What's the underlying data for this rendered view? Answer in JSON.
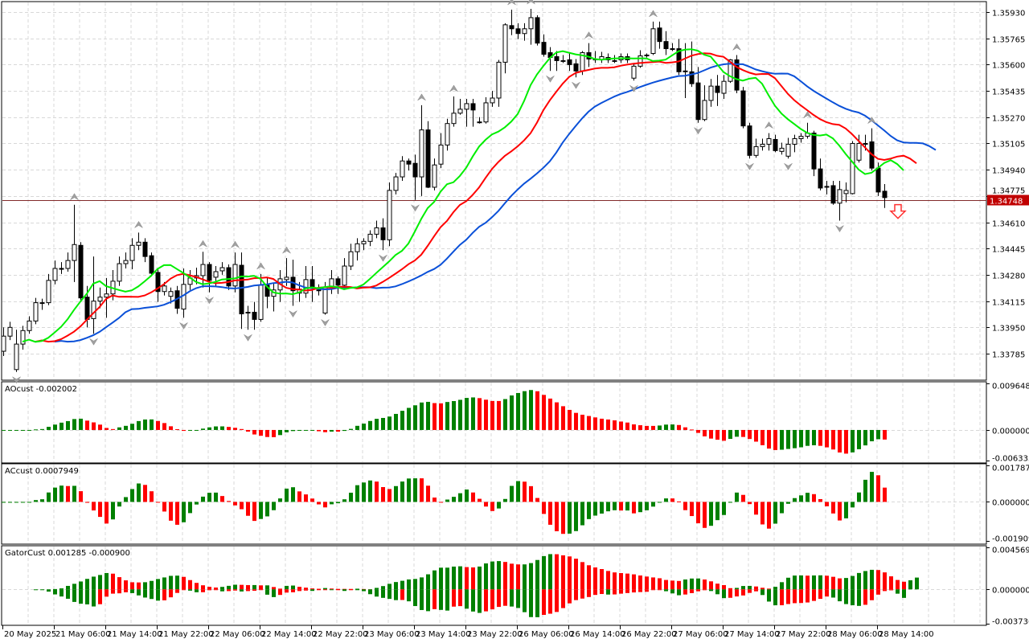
{
  "colors": {
    "bull_body": "#ffffff",
    "bear_body": "#000000",
    "wick": "#000000",
    "hist_up": "#008000",
    "hist_down": "#ff0000",
    "jaw": "#0a50d8",
    "teeth": "#ff0000",
    "lips": "#00ee00",
    "grid": "#d8d8d8",
    "bid_line": "#b00000",
    "price_badge": "#c00000",
    "fractal": "#a0a0a0",
    "signal_arrow": "#ff3030"
  },
  "chart_data": {
    "type": "candlestick",
    "timeframe_bars_per_label": 8,
    "x_tick_labels": [
      "20 May 2025",
      "21 May 06:00",
      "21 May 14:00",
      "21 May 22:00",
      "22 May 06:00",
      "22 May 14:00",
      "22 May 22:00",
      "23 May 06:00",
      "23 May 14:00",
      "23 May 22:00",
      "26 May 06:00",
      "26 May 14:00",
      "26 May 22:00",
      "27 May 06:00",
      "27 May 14:00",
      "27 May 22:00",
      "28 May 06:00",
      "28 May 14:00"
    ],
    "price_axis": {
      "ticks": [
        "1.35930",
        "1.35765",
        "1.35600",
        "1.35435",
        "1.35270",
        "1.35105",
        "1.34940",
        "1.34775",
        "1.34610",
        "1.34445",
        "1.34280",
        "1.34115",
        "1.33950",
        "1.33785"
      ],
      "current_price": "1.34748",
      "current_price_value": 1.34748
    },
    "signal": {
      "type": "sell-arrow",
      "bars_after_last": 2,
      "price": 1.3468
    },
    "alligator": {
      "jaw": {
        "period": 13,
        "shift": 8
      },
      "teeth": {
        "period": 8,
        "shift": 5
      },
      "lips": {
        "period": 5,
        "shift": 3
      }
    },
    "candles_ohlc": [
      [
        1.338,
        1.3395,
        1.3377,
        1.33895
      ],
      [
        1.33895,
        1.33985,
        1.3387,
        1.3395
      ],
      [
        1.33685,
        1.33935,
        1.3367,
        1.33845
      ],
      [
        1.33845,
        1.3396,
        1.3381,
        1.3393
      ],
      [
        1.3393,
        1.3402,
        1.3391,
        1.3399
      ],
      [
        1.3399,
        1.34135,
        1.3397,
        1.34105
      ],
      [
        1.34105,
        1.3413,
        1.3406,
        1.34105
      ],
      [
        1.34105,
        1.34285,
        1.3409,
        1.34245
      ],
      [
        1.34245,
        1.3437,
        1.3422,
        1.3432
      ],
      [
        1.3432,
        1.3436,
        1.34285,
        1.3432
      ],
      [
        1.3432,
        1.3442,
        1.343,
        1.3437
      ],
      [
        1.3437,
        1.3472,
        1.34235,
        1.3447
      ],
      [
        1.34465,
        1.34485,
        1.3412,
        1.34135
      ],
      [
        1.3414,
        1.3421,
        1.3395,
        1.34
      ],
      [
        1.34005,
        1.34395,
        1.3391,
        1.34115
      ],
      [
        1.34115,
        1.342,
        1.3407,
        1.3414
      ],
      [
        1.3414,
        1.3426,
        1.3401,
        1.3416
      ],
      [
        1.3416,
        1.3431,
        1.3412,
        1.3424
      ],
      [
        1.3424,
        1.34395,
        1.3421,
        1.3435
      ],
      [
        1.3435,
        1.3442,
        1.3432,
        1.3437
      ],
      [
        1.3437,
        1.3451,
        1.34315,
        1.34465
      ],
      [
        1.34465,
        1.34545,
        1.34435,
        1.34485
      ],
      [
        1.34485,
        1.3451,
        1.3436,
        1.34395
      ],
      [
        1.344,
        1.3442,
        1.3427,
        1.3429
      ],
      [
        1.34295,
        1.3432,
        1.3411,
        1.34175
      ],
      [
        1.34175,
        1.34235,
        1.3415,
        1.3421
      ],
      [
        1.34145,
        1.342,
        1.341,
        1.34175
      ],
      [
        1.3418,
        1.3421,
        1.34035,
        1.3407
      ],
      [
        1.34065,
        1.3432,
        1.3401,
        1.3422
      ],
      [
        1.3422,
        1.3431,
        1.34185,
        1.3426
      ],
      [
        1.3426,
        1.34325,
        1.3422,
        1.34275
      ],
      [
        1.34275,
        1.34425,
        1.342,
        1.34345
      ],
      [
        1.34345,
        1.3436,
        1.3417,
        1.34245
      ],
      [
        1.34265,
        1.34335,
        1.3421,
        1.343
      ],
      [
        1.34305,
        1.3436,
        1.3428,
        1.34325
      ],
      [
        1.34325,
        1.34345,
        1.34185,
        1.3421
      ],
      [
        1.3421,
        1.3442,
        1.3417,
        1.34345
      ],
      [
        1.3434,
        1.3442,
        1.3394,
        1.34035
      ],
      [
        1.34045,
        1.34085,
        1.33935,
        1.34045
      ],
      [
        1.34045,
        1.3411,
        1.33935,
        1.34
      ],
      [
        1.34,
        1.34285,
        1.33985,
        1.34215
      ],
      [
        1.34215,
        1.3426,
        1.3407,
        1.34145
      ],
      [
        1.34145,
        1.3423,
        1.3405,
        1.34185
      ],
      [
        1.34185,
        1.3431,
        1.3411,
        1.34255
      ],
      [
        1.3425,
        1.34385,
        1.3421,
        1.34265
      ],
      [
        1.34265,
        1.34375,
        1.34085,
        1.3418
      ],
      [
        1.34165,
        1.34235,
        1.3411,
        1.3419
      ],
      [
        1.34165,
        1.34335,
        1.34135,
        1.3425
      ],
      [
        1.3425,
        1.34335,
        1.3411,
        1.34205
      ],
      [
        1.34185,
        1.3422,
        1.3415,
        1.34185
      ],
      [
        1.3404,
        1.34235,
        1.3403,
        1.342
      ],
      [
        1.342,
        1.3431,
        1.3416,
        1.34255
      ],
      [
        1.34255,
        1.3427,
        1.3416,
        1.34215
      ],
      [
        1.34215,
        1.34385,
        1.34195,
        1.34335
      ],
      [
        1.34335,
        1.34475,
        1.3431,
        1.34425
      ],
      [
        1.34425,
        1.3451,
        1.3437,
        1.34475
      ],
      [
        1.34475,
        1.3451,
        1.34435,
        1.3449
      ],
      [
        1.3449,
        1.3456,
        1.3446,
        1.34535
      ],
      [
        1.34535,
        1.3462,
        1.3451,
        1.34575
      ],
      [
        1.34575,
        1.34635,
        1.34435,
        1.345
      ],
      [
        1.345,
        1.3486,
        1.3446,
        1.3481
      ],
      [
        1.3481,
        1.3492,
        1.34785,
        1.34895
      ],
      [
        1.34895,
        1.35025,
        1.3487,
        1.34995
      ],
      [
        1.34995,
        1.3501,
        1.34935,
        1.34975
      ],
      [
        1.3498,
        1.35035,
        1.3475,
        1.34895
      ],
      [
        1.34895,
        1.35345,
        1.34775,
        1.3519
      ],
      [
        1.3519,
        1.35245,
        1.34825,
        1.3483
      ],
      [
        1.3483,
        1.3501,
        1.3481,
        1.3497
      ],
      [
        1.34975,
        1.3517,
        1.3495,
        1.35095
      ],
      [
        1.35095,
        1.3526,
        1.3506,
        1.3523
      ],
      [
        1.3523,
        1.354,
        1.3521,
        1.35295
      ],
      [
        1.35295,
        1.35385,
        1.35285,
        1.3532
      ],
      [
        1.3532,
        1.35385,
        1.3521,
        1.35355
      ],
      [
        1.35355,
        1.35385,
        1.3521,
        1.35315
      ],
      [
        1.3524,
        1.3527,
        1.3523,
        1.3524
      ],
      [
        1.3524,
        1.35395,
        1.3523,
        1.3536
      ],
      [
        1.3536,
        1.35435,
        1.35335,
        1.3539
      ],
      [
        1.3539,
        1.3563,
        1.35335,
        1.35615
      ],
      [
        1.35615,
        1.3586,
        1.35545,
        1.3585
      ],
      [
        1.35845,
        1.35945,
        1.35785,
        1.35825
      ],
      [
        1.35825,
        1.3586,
        1.3576,
        1.35795
      ],
      [
        1.35795,
        1.3586,
        1.3575,
        1.35825
      ],
      [
        1.35825,
        1.3595,
        1.35725,
        1.35895
      ],
      [
        1.35895,
        1.3591,
        1.3572,
        1.35735
      ],
      [
        1.3574,
        1.3579,
        1.3565,
        1.35665
      ],
      [
        1.35675,
        1.3571,
        1.3556,
        1.35645
      ],
      [
        1.3565,
        1.35685,
        1.3556,
        1.35625
      ],
      [
        1.35625,
        1.3566,
        1.3561,
        1.35625
      ],
      [
        1.3563,
        1.3567,
        1.3556,
        1.356
      ],
      [
        1.35605,
        1.35635,
        1.3552,
        1.3556
      ],
      [
        1.3556,
        1.35685,
        1.35535,
        1.35675
      ],
      [
        1.35675,
        1.35735,
        1.35585,
        1.35635
      ],
      [
        1.35635,
        1.35685,
        1.3561,
        1.35635
      ],
      [
        1.3563,
        1.3568,
        1.3561,
        1.3565
      ],
      [
        1.35645,
        1.3567,
        1.3561,
        1.3563
      ],
      [
        1.35625,
        1.3566,
        1.3561,
        1.35625
      ],
      [
        1.3563,
        1.3567,
        1.3561,
        1.3565
      ],
      [
        1.3565,
        1.3567,
        1.3561,
        1.3563
      ],
      [
        1.35515,
        1.3561,
        1.355,
        1.3559
      ],
      [
        1.3559,
        1.3569,
        1.3558,
        1.35655
      ],
      [
        1.3566,
        1.3567,
        1.35645,
        1.3566
      ],
      [
        1.3567,
        1.3587,
        1.3566,
        1.35825
      ],
      [
        1.3583,
        1.3587,
        1.357,
        1.35745
      ],
      [
        1.35745,
        1.3581,
        1.3566,
        1.357
      ],
      [
        1.357,
        1.35735,
        1.35685,
        1.357
      ],
      [
        1.357,
        1.3576,
        1.35535,
        1.35555
      ],
      [
        1.3556,
        1.35735,
        1.3539,
        1.3556
      ],
      [
        1.35555,
        1.35745,
        1.3546,
        1.3548
      ],
      [
        1.35485,
        1.35585,
        1.35235,
        1.35255
      ],
      [
        1.35255,
        1.3547,
        1.35245,
        1.35375
      ],
      [
        1.35375,
        1.3551,
        1.35335,
        1.35465
      ],
      [
        1.35465,
        1.35535,
        1.3534,
        1.35425
      ],
      [
        1.3542,
        1.35535,
        1.35385,
        1.35495
      ],
      [
        1.35495,
        1.35635,
        1.35485,
        1.3563
      ],
      [
        1.3563,
        1.3566,
        1.3542,
        1.3544
      ],
      [
        1.35435,
        1.3546,
        1.352,
        1.35215
      ],
      [
        1.35215,
        1.35235,
        1.3501,
        1.3503
      ],
      [
        1.3503,
        1.35135,
        1.35015,
        1.35085
      ],
      [
        1.35085,
        1.35135,
        1.3506,
        1.351
      ],
      [
        1.351,
        1.3517,
        1.3506,
        1.35135
      ],
      [
        1.3513,
        1.3516,
        1.3505,
        1.3506
      ],
      [
        1.35055,
        1.3511,
        1.35035,
        1.35075
      ],
      [
        1.35025,
        1.3514,
        1.3501,
        1.351
      ],
      [
        1.351,
        1.3516,
        1.3505,
        1.35135
      ],
      [
        1.35135,
        1.3517,
        1.3511,
        1.3515
      ],
      [
        1.3515,
        1.35235,
        1.35135,
        1.3517
      ],
      [
        1.3517,
        1.35185,
        1.349,
        1.34945
      ],
      [
        1.34945,
        1.3501,
        1.3481,
        1.34825
      ],
      [
        1.34835,
        1.3487,
        1.34785,
        1.34835
      ],
      [
        1.3484,
        1.3487,
        1.3472,
        1.3473
      ],
      [
        1.3473,
        1.3487,
        1.3462,
        1.34815
      ],
      [
        1.3479,
        1.3486,
        1.34735,
        1.3481
      ],
      [
        1.3479,
        1.3512,
        1.34785,
        1.35105
      ],
      [
        1.35,
        1.3516,
        1.34985,
        1.35105
      ],
      [
        1.35105,
        1.3516,
        1.3506,
        1.35105
      ],
      [
        1.35115,
        1.352,
        1.34935,
        1.3495
      ],
      [
        1.3495,
        1.34985,
        1.34775,
        1.348
      ],
      [
        1.34805,
        1.3485,
        1.347,
        1.34765
      ]
    ],
    "indicators": [
      {
        "id": "ao",
        "title": "AOcust -0.002002",
        "ticks": [
          "0.009648",
          "0.000000",
          "-0.006335"
        ],
        "range": [
          -0.006335,
          0.009648
        ]
      },
      {
        "id": "ac",
        "title": "ACcust 0.0007949",
        "ticks": [
          "0.0017872",
          "0.0000000",
          "-0.0019091"
        ],
        "range": [
          -0.0019091,
          0.0017872
        ]
      },
      {
        "id": "gator",
        "title": "GatorCust 0.001285 -0.000900",
        "ticks": [
          "0.004569",
          "0.000000",
          "-0.003736"
        ],
        "range": [
          -0.003736,
          0.004569
        ]
      }
    ]
  }
}
